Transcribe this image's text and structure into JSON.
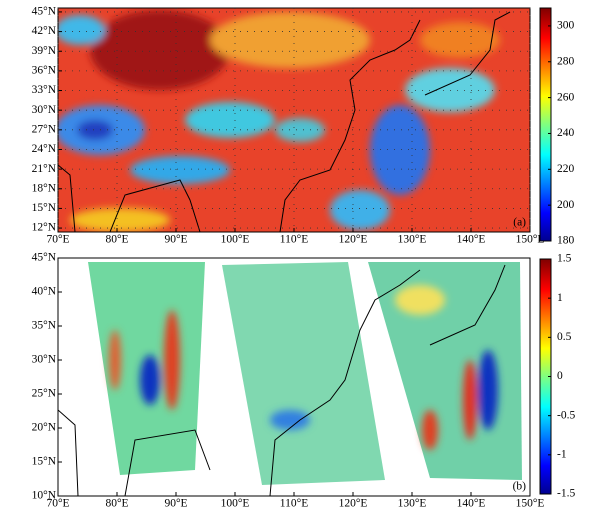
{
  "panels": [
    {
      "label": "(a)",
      "lonlim": [
        70,
        150
      ],
      "latlim": [
        11.4,
        45.6
      ],
      "clim": [
        180,
        310
      ],
      "xticks": [
        {
          "value": 70,
          "label": "70°E"
        },
        {
          "value": 80,
          "label": "80°E"
        },
        {
          "value": 90,
          "label": "90°E"
        },
        {
          "value": 100,
          "label": "100°E"
        },
        {
          "value": 110,
          "label": "110°E"
        },
        {
          "value": 120,
          "label": "120°E"
        },
        {
          "value": 130,
          "label": "130°E"
        },
        {
          "value": 140,
          "label": "140°E"
        },
        {
          "value": 150,
          "label": "150°E"
        }
      ],
      "yticks": [
        {
          "value": 12,
          "label": "12°N"
        },
        {
          "value": 15,
          "label": "15°N"
        },
        {
          "value": 18,
          "label": "18°N"
        },
        {
          "value": 21,
          "label": "21°N"
        },
        {
          "value": 24,
          "label": "24°N"
        },
        {
          "value": 27,
          "label": "27°N"
        },
        {
          "value": 30,
          "label": "30°N"
        },
        {
          "value": 33,
          "label": "33°N"
        },
        {
          "value": 36,
          "label": "36°N"
        },
        {
          "value": 39,
          "label": "39°N"
        },
        {
          "value": 42,
          "label": "42°N"
        },
        {
          "value": 45,
          "label": "45°N"
        }
      ],
      "cticks": [
        180,
        200,
        220,
        240,
        260,
        280,
        300
      ]
    },
    {
      "label": "(b)",
      "lonlim": [
        70,
        150
      ],
      "latlim": [
        10,
        45
      ],
      "clim": [
        -1.5,
        1.5
      ],
      "xticks": [
        {
          "value": 70,
          "label": "70°E"
        },
        {
          "value": 80,
          "label": "80°E"
        },
        {
          "value": 90,
          "label": "90°E"
        },
        {
          "value": 100,
          "label": "100°E"
        },
        {
          "value": 110,
          "label": "110°E"
        },
        {
          "value": 120,
          "label": "120°E"
        },
        {
          "value": 130,
          "label": "130°E"
        },
        {
          "value": 140,
          "label": "140°E"
        },
        {
          "value": 150,
          "label": "150°E"
        }
      ],
      "yticks": [
        {
          "value": 10,
          "label": "10°N"
        },
        {
          "value": 15,
          "label": "15°N"
        },
        {
          "value": 20,
          "label": "20°N"
        },
        {
          "value": 25,
          "label": "25°N"
        },
        {
          "value": 30,
          "label": "30°N"
        },
        {
          "value": 35,
          "label": "35°N"
        },
        {
          "value": 40,
          "label": "40°N"
        },
        {
          "value": 45,
          "label": "45°N"
        }
      ],
      "cticks": [
        -1.5,
        -1,
        -0.5,
        0,
        0.5,
        1,
        1.5
      ]
    }
  ]
}
